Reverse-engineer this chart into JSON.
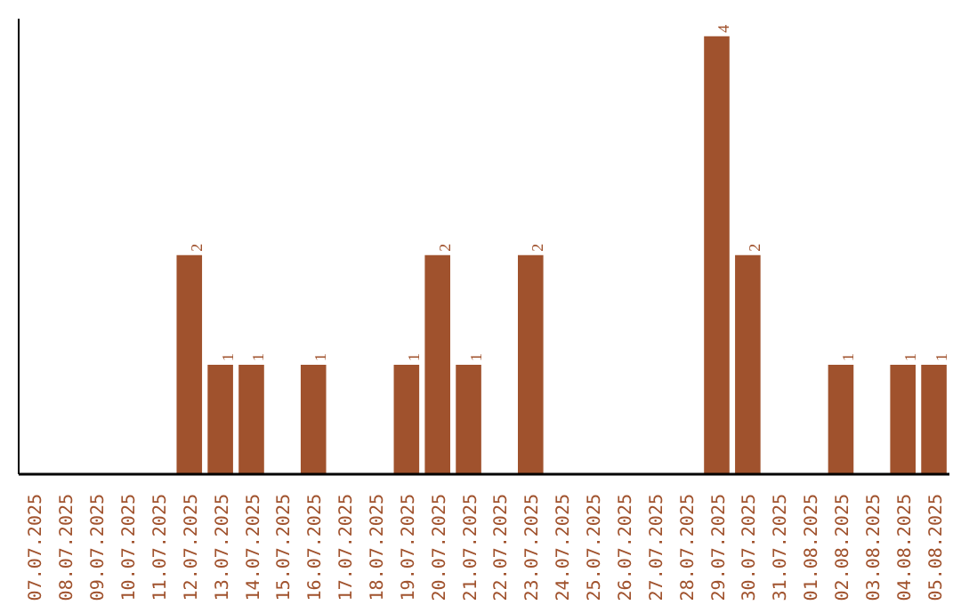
{
  "chart_data": {
    "type": "bar",
    "categories": [
      "07.07.2025",
      "08.07.2025",
      "09.07.2025",
      "10.07.2025",
      "11.07.2025",
      "12.07.2025",
      "13.07.2025",
      "14.07.2025",
      "15.07.2025",
      "16.07.2025",
      "17.07.2025",
      "18.07.2025",
      "19.07.2025",
      "20.07.2025",
      "21.07.2025",
      "22.07.2025",
      "23.07.2025",
      "24.07.2025",
      "25.07.2025",
      "26.07.2025",
      "27.07.2025",
      "28.07.2025",
      "29.07.2025",
      "30.07.2025",
      "31.07.2025",
      "01.08.2025",
      "02.08.2025",
      "03.08.2025",
      "04.08.2025",
      "05.08.2025"
    ],
    "values": [
      0,
      0,
      0,
      0,
      0,
      2,
      1,
      1,
      0,
      1,
      0,
      0,
      1,
      2,
      1,
      0,
      2,
      0,
      0,
      0,
      0,
      0,
      4,
      2,
      0,
      0,
      1,
      0,
      1,
      1
    ],
    "value_labels": [
      null,
      null,
      null,
      null,
      null,
      "2",
      "1",
      "1",
      null,
      "1",
      null,
      null,
      "1",
      "2",
      "1",
      null,
      "2",
      null,
      null,
      null,
      null,
      null,
      "4",
      "2",
      null,
      null,
      "1",
      null,
      "1",
      "1"
    ],
    "color": "#a0522d",
    "grid": false,
    "tick_labels": "x"
  }
}
